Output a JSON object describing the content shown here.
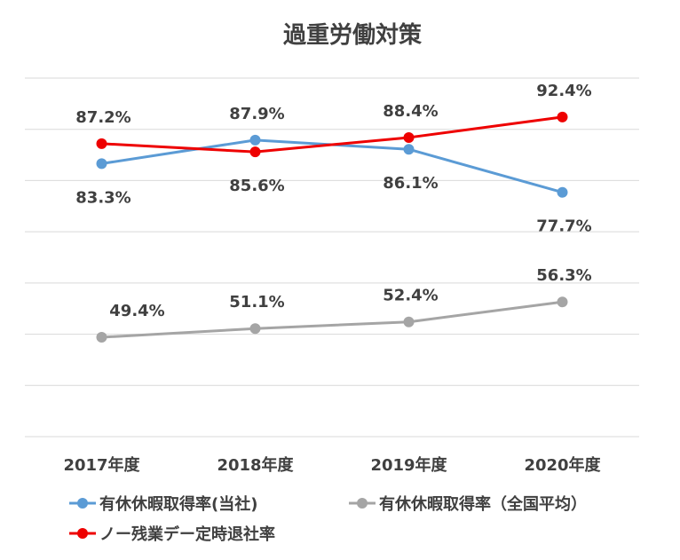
{
  "chart_data": {
    "type": "line",
    "title": "過重労働対策",
    "categories": [
      "2017年度",
      "2018年度",
      "2019年度",
      "2020年度"
    ],
    "ylim": [
      30,
      100
    ],
    "gridlines": [
      30,
      40,
      50,
      60,
      70,
      80,
      90,
      100
    ],
    "grid": true,
    "legend_position": "bottom",
    "series": [
      {
        "name": "有休休暇取得率(当社)",
        "color": "#5B9BD5",
        "values": [
          83.3,
          87.9,
          86.1,
          77.7
        ],
        "labels": [
          "83.3%",
          "87.9%",
          "86.1%",
          "77.7%"
        ],
        "label_positions": [
          "below",
          "above",
          "below",
          "below"
        ]
      },
      {
        "name": "有休休暇取得率（全国平均）",
        "color": "#A5A5A5",
        "values": [
          49.4,
          51.1,
          52.4,
          56.3
        ],
        "labels": [
          "49.4%",
          "51.1%",
          "52.4%",
          "56.3%"
        ],
        "label_positions": [
          "above",
          "above",
          "above",
          "above"
        ]
      },
      {
        "name": "ノー残業デー定時退社率",
        "color": "#EE0000",
        "values": [
          87.2,
          85.6,
          88.4,
          92.4
        ],
        "labels": [
          "87.2%",
          "85.6%",
          "88.4%",
          "92.4%"
        ],
        "label_positions": [
          "above",
          "below",
          "above",
          "above"
        ]
      }
    ]
  }
}
